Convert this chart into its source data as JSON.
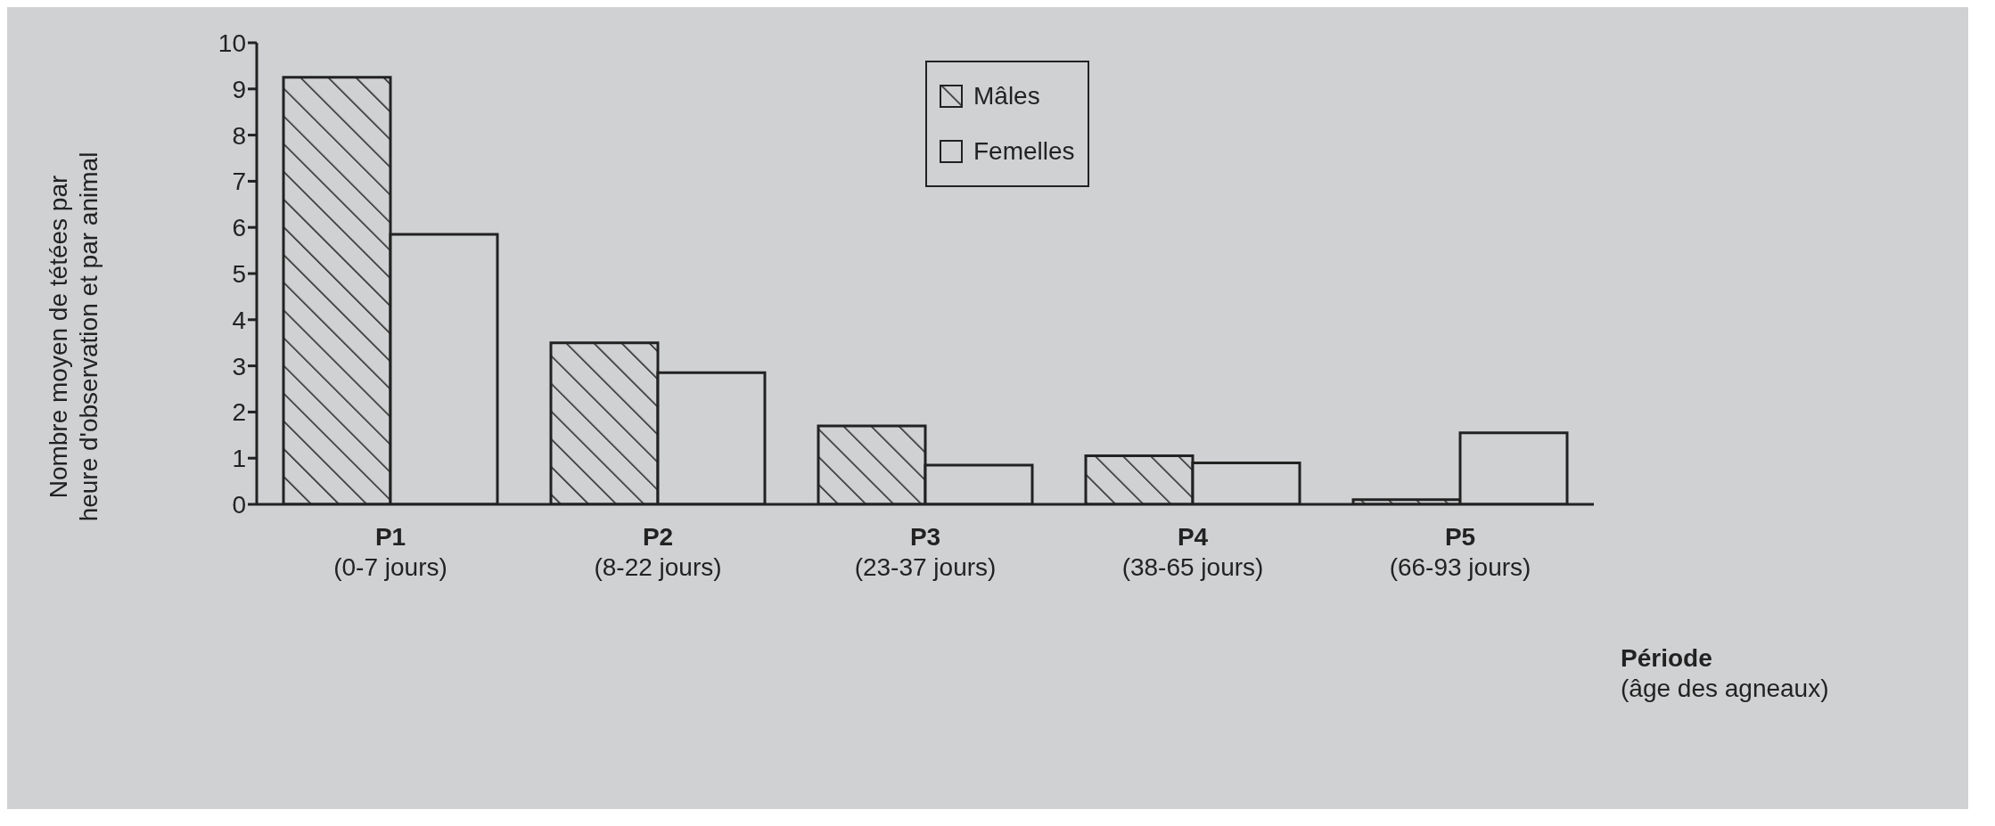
{
  "chart_data": {
    "type": "bar",
    "xlabel": "Période\n(âge des agneaux)",
    "ylabel": "Nombre moyen de tétées par\nheure d'observation et par animal",
    "categories": [
      "P1\n(0-7 jours)",
      "P2\n(8-22 jours)",
      "P3\n(23-37 jours)",
      "P4\n(38-65 jours)",
      "P5\n(66-93 jours)"
    ],
    "series": [
      {
        "name": "Mâles",
        "color": "#222222",
        "values": [
          9.25,
          3.5,
          1.7,
          1.05,
          0.1
        ]
      },
      {
        "name": "Femelles",
        "color": "#d0d1d3",
        "values": [
          5.85,
          2.85,
          0.85,
          0.9,
          1.55
        ]
      }
    ],
    "ylim": [
      0,
      10
    ],
    "yticks": [
      0,
      1,
      2,
      3,
      4,
      5,
      6,
      7,
      8,
      9,
      10
    ],
    "legend": "top"
  }
}
